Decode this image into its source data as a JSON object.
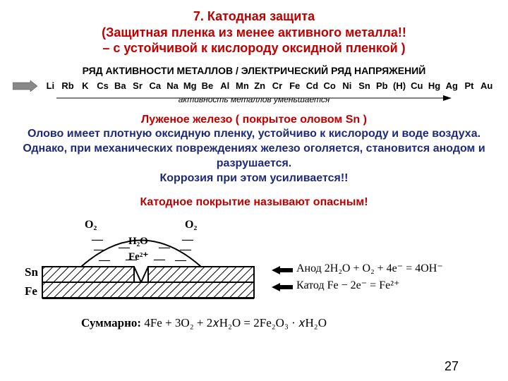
{
  "title": {
    "l1": "7. Катодная защита",
    "l2": "(Защитная пленка из менее  активного металла!!",
    "l3": "– с устойчивой к кислороду оксидной пленкой )"
  },
  "activity": {
    "header": "РЯД АКТИВНОСТИ МЕТАЛЛОВ / ЭЛЕКТРИЧЕСКИЙ РЯД НАПРЯЖЕНИЙ",
    "metals": [
      "Li",
      "Rb",
      "K",
      "Cs",
      "Ba",
      "Sr",
      "Ca",
      "Na",
      "Mg",
      "Be",
      "Al",
      "Mn",
      "Zn",
      "Cr",
      "Fe",
      "Cd",
      "Co",
      "Ni",
      "Sn",
      "Pb",
      "(H)",
      "Cu",
      "Hg",
      "Ag",
      "Pt",
      "Au"
    ],
    "caption": "активность металлов уменьшается"
  },
  "body": {
    "l1": "Луженое железо  ( покрытое оловом Sn )",
    "l2": "Олово имеет плотную оксидную пленку, устойчиво к кислороду и воде воздуха. Однако, при механических повреждениях железо оголяется, становится анодом и разрушается.",
    "l3": "Коррозия при этом усиливается!!",
    "l4": "Катодное покрытие называют опасным!"
  },
  "diagram": {
    "o2_left": "O₂",
    "o2_right": "O₂",
    "h2o": "H₂O",
    "fe2": "Fe²⁺",
    "sn": "Sn",
    "fe": "Fe",
    "anode": "Анод   2H₂O + O₂ + 4e⁻ = 4OH⁻",
    "cathode": "Катод   Fe − 2e⁻ = Fe²⁺",
    "sum_prefix": "Суммарно:",
    "sum_eq": " 4Fe + 3O₂ + 2𝑥H₂O = 2Fe₂O₃ · 𝑥H₂O",
    "page": "27"
  },
  "colors": {
    "red": "#c00000",
    "navy": "#1e2a78",
    "black": "#000000",
    "hatch": "#000000",
    "bg": "#ffffff"
  }
}
